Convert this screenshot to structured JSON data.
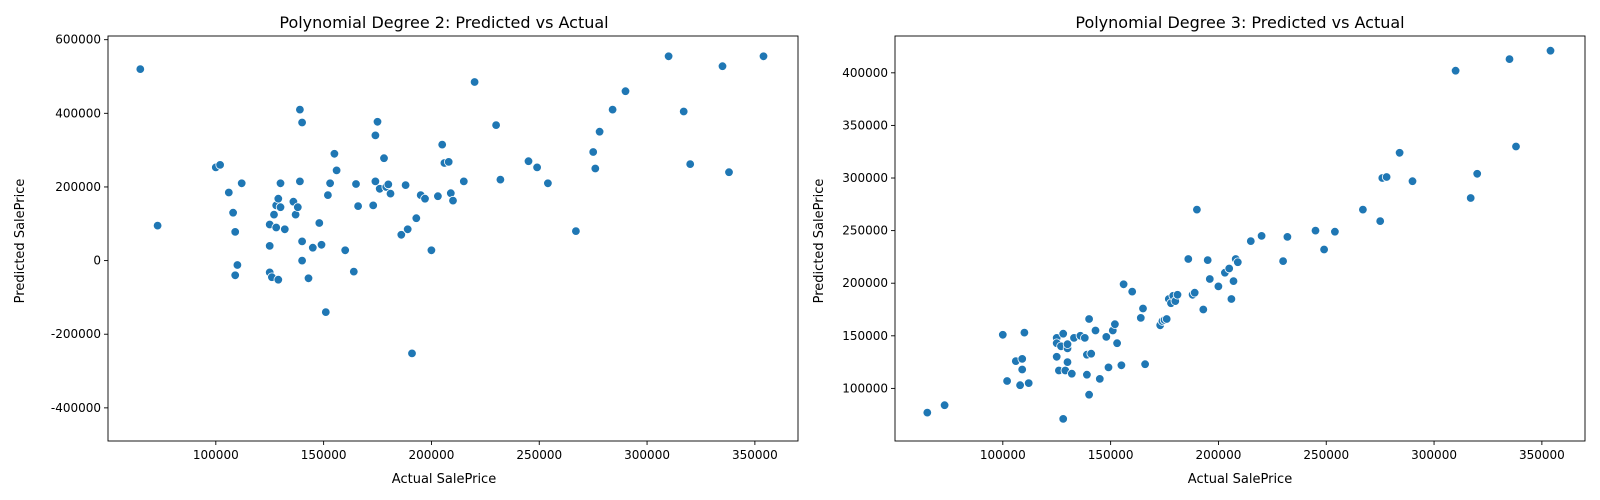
{
  "colors": {
    "points": "#1f77b4",
    "background": "#ffffff"
  },
  "chart_data": [
    {
      "type": "scatter",
      "title": "Polynomial Degree 2: Predicted vs Actual",
      "xlabel": "Actual SalePrice",
      "ylabel": "Predicted SalePrice",
      "xlim": [
        50000,
        370000
      ],
      "ylim": [
        -490000,
        610000
      ],
      "xticks": [
        100000,
        150000,
        200000,
        250000,
        300000,
        350000
      ],
      "yticks": [
        -400000,
        -200000,
        0,
        200000,
        400000,
        600000
      ],
      "grid": false,
      "x": [
        65000,
        73000,
        100000,
        102000,
        106000,
        108000,
        109000,
        110000,
        109000,
        112000,
        125000,
        125000,
        125000,
        126000,
        127000,
        128000,
        128000,
        129000,
        129000,
        130000,
        130000,
        132000,
        136000,
        137000,
        138000,
        139000,
        139000,
        140000,
        140000,
        140000,
        143000,
        145000,
        148000,
        149000,
        151000,
        152000,
        153000,
        155000,
        156000,
        160000,
        164000,
        165000,
        166000,
        173000,
        174000,
        174000,
        175000,
        176000,
        178000,
        179000,
        180000,
        181000,
        186000,
        188000,
        189000,
        191000,
        193000,
        195000,
        197000,
        200000,
        203000,
        205000,
        206000,
        208000,
        209000,
        210000,
        215000,
        220000,
        230000,
        232000,
        245000,
        249000,
        254000,
        267000,
        275000,
        276000,
        278000,
        284000,
        290000,
        310000,
        317000,
        320000,
        335000,
        338000,
        354000
      ],
      "y": [
        520000,
        95000,
        253000,
        260000,
        185000,
        130000,
        78000,
        -12000,
        -40000,
        210000,
        98000,
        40000,
        -32000,
        -45000,
        125000,
        150000,
        90000,
        -52000,
        168000,
        210000,
        145000,
        85000,
        160000,
        125000,
        145000,
        410000,
        215000,
        375000,
        52000,
        0,
        -48000,
        35000,
        102000,
        43000,
        -140000,
        178000,
        210000,
        290000,
        245000,
        28000,
        -30000,
        208000,
        148000,
        150000,
        215000,
        340000,
        377000,
        195000,
        278000,
        200000,
        207000,
        182000,
        70000,
        205000,
        85000,
        -252000,
        115000,
        178000,
        168000,
        28000,
        175000,
        315000,
        265000,
        268000,
        183000,
        163000,
        215000,
        485000,
        368000,
        220000,
        270000,
        253000,
        210000,
        80000,
        295000,
        250000,
        350000,
        410000,
        460000,
        555000,
        405000,
        262000,
        528000,
        240000,
        555000
      ]
    },
    {
      "type": "scatter",
      "title": "Polynomial Degree 3: Predicted vs Actual",
      "xlabel": "Actual SalePrice",
      "ylabel": "Predicted SalePrice",
      "xlim": [
        50000,
        370000
      ],
      "ylim": [
        50000,
        435000
      ],
      "xticks": [
        100000,
        150000,
        200000,
        250000,
        300000,
        350000
      ],
      "yticks": [
        100000,
        150000,
        200000,
        250000,
        300000,
        350000,
        400000
      ],
      "grid": false,
      "x": [
        65000,
        73000,
        100000,
        102000,
        106000,
        108000,
        109000,
        110000,
        109000,
        112000,
        125000,
        125000,
        125000,
        126000,
        127000,
        128000,
        128000,
        129000,
        130000,
        130000,
        130000,
        132000,
        133000,
        136000,
        138000,
        139000,
        139000,
        140000,
        140000,
        141000,
        143000,
        145000,
        148000,
        149000,
        151000,
        152000,
        153000,
        155000,
        156000,
        160000,
        164000,
        165000,
        166000,
        173000,
        174000,
        175000,
        176000,
        177000,
        178000,
        179000,
        180000,
        181000,
        186000,
        188000,
        189000,
        190000,
        193000,
        195000,
        196000,
        200000,
        203000,
        205000,
        206000,
        207000,
        208000,
        209000,
        215000,
        220000,
        230000,
        232000,
        245000,
        249000,
        254000,
        267000,
        275000,
        276000,
        278000,
        284000,
        290000,
        310000,
        317000,
        320000,
        335000,
        338000,
        354000
      ],
      "y": [
        77000,
        84000,
        151000,
        107000,
        126000,
        103000,
        118000,
        153000,
        128000,
        105000,
        148000,
        130000,
        143000,
        117000,
        140000,
        152000,
        71000,
        117000,
        138000,
        125000,
        142000,
        114000,
        148000,
        150000,
        148000,
        113000,
        132000,
        94000,
        166000,
        133000,
        155000,
        109000,
        149000,
        120000,
        155000,
        161000,
        143000,
        122000,
        199000,
        192000,
        167000,
        176000,
        123000,
        160000,
        164000,
        165000,
        166000,
        185000,
        181000,
        188000,
        183000,
        189000,
        223000,
        189000,
        191000,
        270000,
        175000,
        222000,
        204000,
        197000,
        210000,
        214000,
        185000,
        202000,
        223000,
        220000,
        240000,
        245000,
        221000,
        244000,
        250000,
        232000,
        249000,
        270000,
        259000,
        300000,
        301000,
        324000,
        297000,
        402000,
        281000,
        304000,
        413000,
        330000,
        421000
      ]
    }
  ]
}
